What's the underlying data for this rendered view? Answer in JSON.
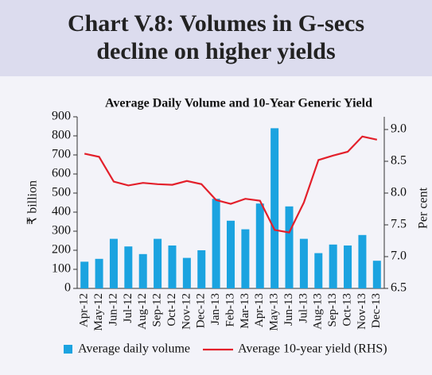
{
  "chart_data": {
    "type": "bar",
    "title": "Chart V.8: Volumes in G-secs decline on higher yields",
    "subtitle": "Average Daily Volume and 10-Year Generic Yield",
    "y_label": "₹ billion",
    "y2_label": "Per cent",
    "categories": [
      "Apr-12",
      "May-12",
      "Jun-12",
      "Jul-12",
      "Aug-12",
      "Sep-12",
      "Oct-12",
      "Nov-12",
      "Dec-12",
      "Jan-13",
      "Feb-13",
      "Mar-13",
      "Apr-13",
      "May-13",
      "Jun-13",
      "Jul-13",
      "Aug-13",
      "Sep-13",
      "Oct-13",
      "Nov-13",
      "Dec-13"
    ],
    "series": [
      {
        "name": "Average daily volume",
        "type": "bar",
        "color": "#1ba3e0",
        "values": [
          140,
          155,
          260,
          220,
          180,
          260,
          225,
          160,
          200,
          470,
          355,
          310,
          445,
          840,
          430,
          260,
          185,
          230,
          225,
          280,
          145
        ]
      },
      {
        "name": "Average 10-year yield (RHS)",
        "type": "line",
        "axis": "y2",
        "color": "#e3202b",
        "values": [
          8.62,
          8.57,
          8.18,
          8.12,
          8.16,
          8.14,
          8.13,
          8.19,
          8.14,
          7.89,
          7.83,
          7.91,
          7.88,
          7.42,
          7.38,
          7.85,
          8.52,
          8.59,
          8.65,
          8.89,
          8.84
        ]
      }
    ],
    "ylim": [
      0,
      900
    ],
    "yticks": [
      0,
      100,
      200,
      300,
      400,
      500,
      600,
      700,
      800,
      900
    ],
    "y2lim": [
      6.5,
      9.2
    ],
    "y2ticks": [
      6.5,
      {
        "value": 7,
        "label": "7.0"
      },
      7.5,
      {
        "value": 8,
        "label": "8.0"
      },
      8.5,
      {
        "value": 9,
        "label": "9.0"
      }
    ],
    "legend": "bottom"
  }
}
